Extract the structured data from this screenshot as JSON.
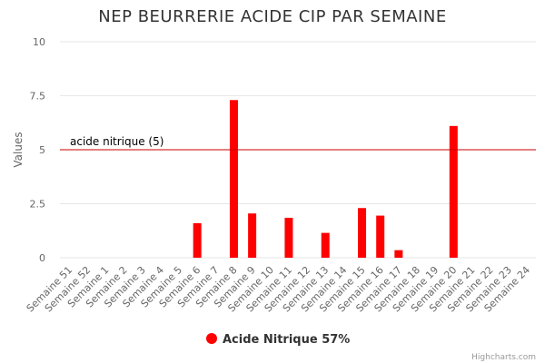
{
  "chart_data": {
    "type": "bar",
    "title": "NEP BEURRERIE ACIDE CIP PAR SEMAINE",
    "xlabel": "",
    "ylabel": "Values",
    "ylim": [
      0,
      10
    ],
    "yticks": [
      "0",
      "2.5",
      "5",
      "7.5",
      "10"
    ],
    "ytick_values": [
      0,
      2.5,
      5,
      7.5,
      10
    ],
    "grid": true,
    "legend_position": "bottom",
    "categories": [
      "Semaine 51",
      "Semaine 52",
      "Semaine 1",
      "Semaine 2",
      "Semaine 3",
      "Semaine 4",
      "Semaine 5",
      "Semaine 6",
      "Semaine 7",
      "Semaine 8",
      "Semaine 9",
      "Semaine 10",
      "Semaine 11",
      "Semaine 12",
      "Semaine 13",
      "Semaine 14",
      "Semaine 15",
      "Semaine 16",
      "Semaine 17",
      "Semaine 18",
      "Semaine 19",
      "Semaine 20",
      "Semaine 21",
      "Semaine 22",
      "Semaine 23",
      "Semaine 24"
    ],
    "series": [
      {
        "name": "Acide Nitrique 57%",
        "color": "#ff0000",
        "values": [
          0,
          0,
          0,
          0,
          0,
          0,
          0,
          1.6,
          0,
          7.3,
          2.05,
          0,
          1.85,
          0,
          1.15,
          0,
          2.3,
          1.95,
          0.35,
          0,
          0,
          6.1,
          0,
          0,
          0,
          0
        ]
      }
    ],
    "plot_line": {
      "label": "acide nitrique (5)",
      "value": 5,
      "color": "#cc0000"
    }
  },
  "credits": "Highcharts.com"
}
